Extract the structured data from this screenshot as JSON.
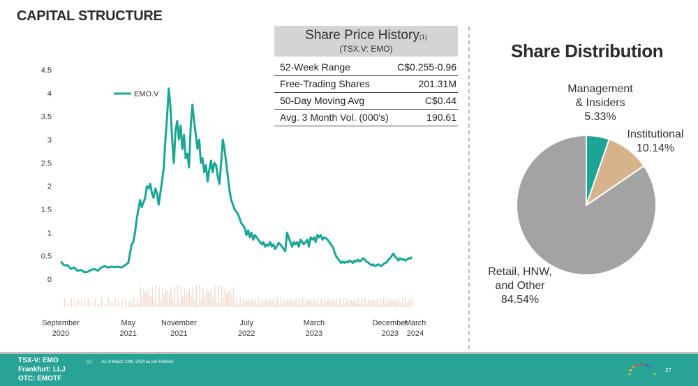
{
  "page": {
    "title": "CAPITAL STRUCTURE",
    "page_number": "27"
  },
  "share_price_history": {
    "title": "Share Price History",
    "title_footnote": "(1)",
    "subtitle": "(TSX.V: EMO)",
    "rows": [
      {
        "label": "52-Week Range",
        "value": "C$0.255-0.96"
      },
      {
        "label": "Free-Trading Shares",
        "value": "201.31M"
      },
      {
        "label": "50-Day Moving Avg",
        "value": "C$0.44"
      },
      {
        "label": "Avg. 3 Month Vol. (000's)",
        "value": "190.61"
      }
    ]
  },
  "chart_data": [
    {
      "type": "line",
      "title": "",
      "xlabel": "",
      "ylabel": "",
      "ylim": [
        0,
        4.5
      ],
      "y_ticks": [
        "4.5",
        "4",
        "3.5",
        "3",
        "2.5",
        "2",
        "1.5",
        "1",
        "0.5",
        "0"
      ],
      "x_ticks": [
        {
          "month": "September",
          "year": "2020",
          "x": 0
        },
        {
          "month": "May",
          "year": "2021",
          "x": 8
        },
        {
          "month": "November",
          "year": "2021",
          "x": 14
        },
        {
          "month": "July",
          "year": "2022",
          "x": 22
        },
        {
          "month": "March",
          "year": "2023",
          "x": 30
        },
        {
          "month": "December",
          "year": "2023",
          "x": 39
        },
        {
          "month": "March",
          "year": "2024",
          "x": 42
        }
      ],
      "x_unit": "months since September 2020",
      "series": [
        {
          "name": "EMO.V",
          "color": "#1aa595",
          "points": [
            [
              0.0,
              0.38
            ],
            [
              0.4,
              0.3
            ],
            [
              0.8,
              0.3
            ],
            [
              1.2,
              0.22
            ],
            [
              1.6,
              0.25
            ],
            [
              2.0,
              0.18
            ],
            [
              2.4,
              0.2
            ],
            [
              2.8,
              0.15
            ],
            [
              3.2,
              0.16
            ],
            [
              3.6,
              0.2
            ],
            [
              4.0,
              0.22
            ],
            [
              4.4,
              0.18
            ],
            [
              4.8,
              0.25
            ],
            [
              5.2,
              0.28
            ],
            [
              5.6,
              0.25
            ],
            [
              6.0,
              0.27
            ],
            [
              6.4,
              0.26
            ],
            [
              6.8,
              0.27
            ],
            [
              7.2,
              0.25
            ],
            [
              7.6,
              0.3
            ],
            [
              8.0,
              0.35
            ],
            [
              8.2,
              0.55
            ],
            [
              8.4,
              0.75
            ],
            [
              8.6,
              0.8
            ],
            [
              8.8,
              1.0
            ],
            [
              9.0,
              1.3
            ],
            [
              9.2,
              1.5
            ],
            [
              9.4,
              1.7
            ],
            [
              9.6,
              1.55
            ],
            [
              9.8,
              1.65
            ],
            [
              10.0,
              1.75
            ],
            [
              10.2,
              2.0
            ],
            [
              10.4,
              1.95
            ],
            [
              10.6,
              2.05
            ],
            [
              10.8,
              1.85
            ],
            [
              11.0,
              1.75
            ],
            [
              11.2,
              1.95
            ],
            [
              11.4,
              1.85
            ],
            [
              11.6,
              1.6
            ],
            [
              11.8,
              1.85
            ],
            [
              12.0,
              2.1
            ],
            [
              12.2,
              2.4
            ],
            [
              12.4,
              3.0
            ],
            [
              12.6,
              3.5
            ],
            [
              12.8,
              4.1
            ],
            [
              13.0,
              3.7
            ],
            [
              13.2,
              3.0
            ],
            [
              13.4,
              2.5
            ],
            [
              13.6,
              3.2
            ],
            [
              13.8,
              3.4
            ],
            [
              14.0,
              3.0
            ],
            [
              14.2,
              3.3
            ],
            [
              14.4,
              2.8
            ],
            [
              14.6,
              3.1
            ],
            [
              14.8,
              2.6
            ],
            [
              15.0,
              2.7
            ],
            [
              15.2,
              2.4
            ],
            [
              15.4,
              3.3
            ],
            [
              15.6,
              3.75
            ],
            [
              15.8,
              3.4
            ],
            [
              16.0,
              3.1
            ],
            [
              16.2,
              2.8
            ],
            [
              16.4,
              3.0
            ],
            [
              16.6,
              2.5
            ],
            [
              16.8,
              2.6
            ],
            [
              17.0,
              2.3
            ],
            [
              17.2,
              2.45
            ],
            [
              17.4,
              2.1
            ],
            [
              17.6,
              2.35
            ],
            [
              17.8,
              2.55
            ],
            [
              18.0,
              2.3
            ],
            [
              18.2,
              2.5
            ],
            [
              18.4,
              2.45
            ],
            [
              18.6,
              2.2
            ],
            [
              18.8,
              2.05
            ],
            [
              19.0,
              2.5
            ],
            [
              19.2,
              3.0
            ],
            [
              19.4,
              2.8
            ],
            [
              19.6,
              2.5
            ],
            [
              19.8,
              2.2
            ],
            [
              20.0,
              1.9
            ],
            [
              20.2,
              1.7
            ],
            [
              20.4,
              1.6
            ],
            [
              20.6,
              1.5
            ],
            [
              20.8,
              1.45
            ],
            [
              21.0,
              1.4
            ],
            [
              21.2,
              1.3
            ],
            [
              21.4,
              1.2
            ],
            [
              21.6,
              1.15
            ],
            [
              21.8,
              1.1
            ],
            [
              22.0,
              0.95
            ],
            [
              22.2,
              1.05
            ],
            [
              22.4,
              0.9
            ],
            [
              22.6,
              1.0
            ],
            [
              22.8,
              0.85
            ],
            [
              23.0,
              0.95
            ],
            [
              23.2,
              0.9
            ],
            [
              23.4,
              0.85
            ],
            [
              23.6,
              0.8
            ],
            [
              23.8,
              0.75
            ],
            [
              24.0,
              0.8
            ],
            [
              24.2,
              0.7
            ],
            [
              24.4,
              0.75
            ],
            [
              24.6,
              0.72
            ],
            [
              24.8,
              0.8
            ],
            [
              25.0,
              0.7
            ],
            [
              25.2,
              0.75
            ],
            [
              25.4,
              0.65
            ],
            [
              25.6,
              0.7
            ],
            [
              25.8,
              0.78
            ],
            [
              26.0,
              0.75
            ],
            [
              26.2,
              0.7
            ],
            [
              26.4,
              0.65
            ],
            [
              26.6,
              0.6
            ],
            [
              26.8,
              1.0
            ],
            [
              27.0,
              0.9
            ],
            [
              27.2,
              0.8
            ],
            [
              27.4,
              0.7
            ],
            [
              27.6,
              0.8
            ],
            [
              27.8,
              0.75
            ],
            [
              28.0,
              0.8
            ],
            [
              28.2,
              0.7
            ],
            [
              28.4,
              0.85
            ],
            [
              28.6,
              0.8
            ],
            [
              28.8,
              0.75
            ],
            [
              29.0,
              0.8
            ],
            [
              29.2,
              0.85
            ],
            [
              29.4,
              0.7
            ],
            [
              29.6,
              0.9
            ],
            [
              29.8,
              0.85
            ],
            [
              30.0,
              0.9
            ],
            [
              30.2,
              0.8
            ],
            [
              30.4,
              0.95
            ],
            [
              30.6,
              0.9
            ],
            [
              30.8,
              0.95
            ],
            [
              31.0,
              0.85
            ],
            [
              31.2,
              0.9
            ],
            [
              31.4,
              0.88
            ],
            [
              31.6,
              0.85
            ],
            [
              31.8,
              0.8
            ],
            [
              32.0,
              0.75
            ],
            [
              32.2,
              0.7
            ],
            [
              32.4,
              0.6
            ],
            [
              32.6,
              0.5
            ],
            [
              32.8,
              0.45
            ],
            [
              33.0,
              0.4
            ],
            [
              33.2,
              0.35
            ],
            [
              33.4,
              0.38
            ],
            [
              33.6,
              0.35
            ],
            [
              33.8,
              0.38
            ],
            [
              34.0,
              0.36
            ],
            [
              34.2,
              0.4
            ],
            [
              34.4,
              0.38
            ],
            [
              34.6,
              0.35
            ],
            [
              34.8,
              0.4
            ],
            [
              35.0,
              0.38
            ],
            [
              35.2,
              0.42
            ],
            [
              35.4,
              0.38
            ],
            [
              35.6,
              0.4
            ],
            [
              35.8,
              0.45
            ],
            [
              36.0,
              0.43
            ],
            [
              36.2,
              0.38
            ],
            [
              36.4,
              0.36
            ],
            [
              36.6,
              0.33
            ],
            [
              36.8,
              0.3
            ],
            [
              37.0,
              0.32
            ],
            [
              37.2,
              0.28
            ],
            [
              37.4,
              0.3
            ],
            [
              37.6,
              0.32
            ],
            [
              37.8,
              0.3
            ],
            [
              38.0,
              0.28
            ],
            [
              38.2,
              0.32
            ],
            [
              38.4,
              0.35
            ],
            [
              38.6,
              0.36
            ],
            [
              38.8,
              0.42
            ],
            [
              39.0,
              0.45
            ],
            [
              39.2,
              0.5
            ],
            [
              39.4,
              0.55
            ],
            [
              39.6,
              0.48
            ],
            [
              39.8,
              0.45
            ],
            [
              40.0,
              0.4
            ],
            [
              40.2,
              0.45
            ],
            [
              40.4,
              0.42
            ],
            [
              40.6,
              0.43
            ],
            [
              40.8,
              0.4
            ],
            [
              41.0,
              0.42
            ],
            [
              41.2,
              0.45
            ],
            [
              41.4,
              0.44
            ],
            [
              41.6,
              0.48
            ]
          ]
        }
      ],
      "volume_color": "#f1d9cc",
      "legend": {
        "label": "EMO.V",
        "position": "top-left"
      }
    },
    {
      "type": "pie",
      "title": "Share Distribution",
      "slices": [
        {
          "label_lines": [
            "Management",
            "& Insiders",
            "5.33%"
          ],
          "value": 5.33,
          "color": "#1aa595"
        },
        {
          "label_lines": [
            "Institutional",
            "10.14%"
          ],
          "value": 10.14,
          "color": "#d6b38a"
        },
        {
          "label_lines": [
            "Retail, HNW,",
            "and Other",
            "84.54%"
          ],
          "value": 84.54,
          "color": "#a3a3a3"
        }
      ]
    }
  ],
  "footer": {
    "tickers": [
      "TSX-V: EMO",
      "Frankfurt: LLJ",
      "OTC:  EMOTF"
    ],
    "footnote_num": "(1)",
    "footnote_text": "As of  March 19th, 2024 as per Refinitiv"
  }
}
